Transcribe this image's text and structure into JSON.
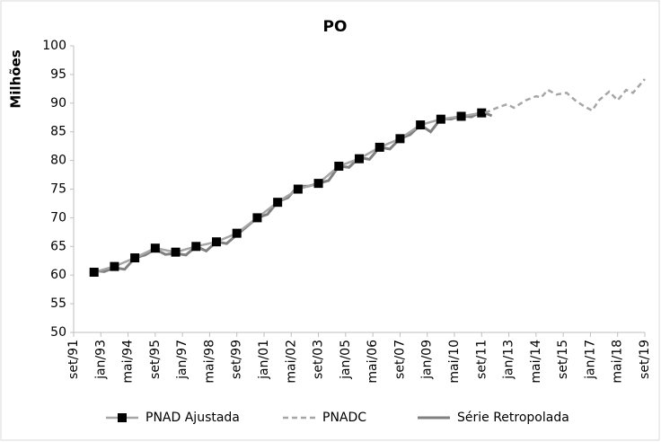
{
  "chart_data": {
    "type": "line",
    "title": "PO",
    "y_label": "Milhões",
    "xlim": [
      0,
      336
    ],
    "xticks": [
      {
        "value": 0,
        "label": "set/91"
      },
      {
        "value": 16,
        "label": "jan/93"
      },
      {
        "value": 32,
        "label": "mai/94"
      },
      {
        "value": 48,
        "label": "set/95"
      },
      {
        "value": 64,
        "label": "jan/97"
      },
      {
        "value": 80,
        "label": "mai/98"
      },
      {
        "value": 96,
        "label": "set/99"
      },
      {
        "value": 112,
        "label": "jan/01"
      },
      {
        "value": 128,
        "label": "mai/02"
      },
      {
        "value": 144,
        "label": "set/03"
      },
      {
        "value": 160,
        "label": "jan/05"
      },
      {
        "value": 176,
        "label": "mai/06"
      },
      {
        "value": 192,
        "label": "set/07"
      },
      {
        "value": 208,
        "label": "jan/09"
      },
      {
        "value": 224,
        "label": "mai/10"
      },
      {
        "value": 240,
        "label": "set/11"
      },
      {
        "value": 256,
        "label": "jan/13"
      },
      {
        "value": 272,
        "label": "mai/14"
      },
      {
        "value": 288,
        "label": "set/15"
      },
      {
        "value": 304,
        "label": "jan/17"
      },
      {
        "value": 320,
        "label": "mai/18"
      },
      {
        "value": 336,
        "label": "set/19"
      }
    ],
    "ylim": [
      50,
      100
    ],
    "yticks": [
      50,
      55,
      60,
      65,
      70,
      75,
      80,
      85,
      90,
      95,
      100
    ],
    "legend": "bottom",
    "series": [
      {
        "name": "PNAD Ajustada",
        "color": "#a6a6a6",
        "marker": "square",
        "marker_color": "#000000",
        "dashed": false,
        "x": [
          12,
          24,
          36,
          48,
          60,
          72,
          84,
          96,
          108,
          120,
          132,
          144,
          156,
          168,
          180,
          192,
          204,
          216,
          228,
          240
        ],
        "values": [
          60.5,
          61.5,
          63,
          64.7,
          64,
          65,
          65.8,
          67.3,
          70,
          72.7,
          75,
          76,
          79,
          80.3,
          82.3,
          83.8,
          86.2,
          87.2,
          87.7,
          88.3
        ]
      },
      {
        "name": "PNADC",
        "color": "#a6a6a6",
        "dashed": true,
        "x": [
          242,
          250,
          255,
          259,
          266,
          272,
          275,
          279,
          284,
          290,
          295,
          300,
          305,
          309,
          315,
          320,
          325,
          329,
          336
        ],
        "values": [
          88.3,
          89.3,
          89.8,
          89.2,
          90.5,
          91.2,
          91,
          92.3,
          91.5,
          91.8,
          90.5,
          89.5,
          88.7,
          90.5,
          92,
          90.5,
          92.3,
          91.8,
          94.2
        ]
      },
      {
        "name": "Série Retropolada",
        "color": "#808080",
        "dashed": false,
        "x": [
          12,
          18,
          24,
          30,
          36,
          42,
          48,
          54,
          60,
          66,
          72,
          78,
          84,
          90,
          96,
          102,
          108,
          114,
          120,
          126,
          132,
          138,
          144,
          150,
          156,
          162,
          168,
          174,
          180,
          186,
          192,
          198,
          204,
          210,
          216,
          222,
          228,
          234,
          240,
          246
        ],
        "values": [
          60.8,
          60.6,
          61.3,
          61,
          63,
          63.5,
          64.5,
          63.6,
          63.8,
          63.5,
          65,
          64.2,
          65.8,
          65.5,
          67,
          68.5,
          70,
          70.6,
          72.8,
          73.5,
          75.5,
          75.5,
          76,
          76.5,
          79,
          78.8,
          80.5,
          80.2,
          82.3,
          82,
          83.8,
          84.5,
          86.2,
          85,
          87.3,
          87.2,
          87.8,
          87.6,
          88.5,
          87.8
        ]
      }
    ]
  }
}
